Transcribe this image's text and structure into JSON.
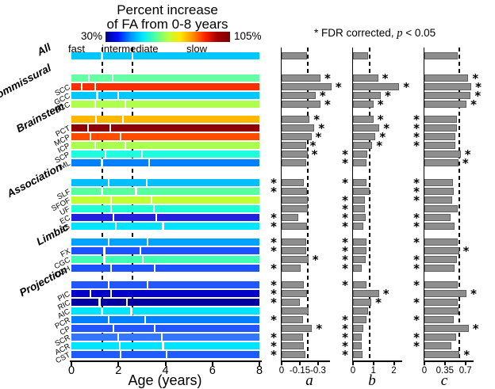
{
  "header": {
    "title_line1": "Percent increase",
    "title_line2": "of FA from 0-8 years",
    "fdr_prefix": "* FDR corrected, ",
    "fdr_p": "p",
    "fdr_suffix": " < 0.05"
  },
  "colorbar": {
    "min_label": "30%",
    "max_label": "105%",
    "speed_fast": "fast",
    "speed_intermediate": "intermediate",
    "speed_slow": "slow",
    "gradient_colors": [
      "#000088",
      "#0010FF",
      "#0090FF",
      "#00E8FF",
      "#50FFA0",
      "#B8FF40",
      "#FFE800",
      "#FF9000",
      "#FF2000",
      "#A00000",
      "#800000"
    ]
  },
  "chart_data": {
    "type": "bar",
    "description": "Horizontal age-timeline bars (jet color = total percent FA increase, white gaps = fast/intermediate/slow phase transition ages) plus three gray horizontal bar panels a, b, c; dashed line in each panel marks the All (whole-brain) value; * = FDR corrected p < 0.05",
    "main": {
      "xlabel": "Age (years)",
      "xlim": [
        0,
        8
      ],
      "xticks": [
        {
          "value": 0,
          "label": "0"
        },
        {
          "value": 2,
          "label": "2"
        },
        {
          "value": 4,
          "label": "4"
        },
        {
          "value": 6,
          "label": "6"
        },
        {
          "value": 8,
          "label": "8"
        }
      ],
      "dashed_ages": [
        1.3,
        2.6
      ],
      "color_scale_min": "30%",
      "color_scale_max": "105%"
    },
    "panels": [
      {
        "letter": "a",
        "dashed_value": -0.217,
        "axis_range": [
          0,
          -0.39
        ],
        "ticks": [
          {
            "value": 0,
            "label": "0"
          },
          {
            "value": 0.15,
            "label": "-0.15"
          },
          {
            "value": 0.3,
            "label": "-0.3"
          }
        ]
      },
      {
        "letter": "b",
        "dashed_value": 0.82,
        "axis_range": [
          0,
          2.4
        ],
        "ticks": [
          {
            "value": 0,
            "label": "0"
          },
          {
            "value": 1,
            "label": "1"
          },
          {
            "value": 2,
            "label": "2"
          }
        ]
      },
      {
        "letter": "c",
        "dashed_value": 0.6,
        "axis_range": [
          0,
          0.84
        ],
        "ticks": [
          {
            "value": 0,
            "label": "0"
          },
          {
            "value": 0.35,
            "label": "0.35"
          },
          {
            "value": 0.7,
            "label": "0.7"
          }
        ]
      }
    ],
    "group_names": [
      "All",
      "Commissural",
      "Brainstem",
      "Association",
      "Limbic",
      "Projection"
    ],
    "rows": [
      {
        "label": "All",
        "group": "All",
        "group_mean": true,
        "color": "#00C8FF",
        "phase_breaks": [
          1.3,
          2.6
        ],
        "a": -0.21,
        "a_star": null,
        "b": 0.75,
        "b_star": null,
        "c": 0.57,
        "c_star": null
      },
      {
        "label": "Commissural",
        "group": "Commissural",
        "group_mean": true,
        "color": "#66FFA3",
        "phase_breaks": [
          0.75,
          1.75
        ],
        "a": -0.32,
        "a_star": "right",
        "b": 1.23,
        "b_star": "right",
        "c": 0.75,
        "c_star": "right"
      },
      {
        "label": "SCC",
        "group": "Commissural",
        "group_mean": false,
        "color": "#FF2E00",
        "phase_breaks": [
          0.45,
          1.0
        ],
        "a": -0.41,
        "a_star": "right",
        "b": 2.26,
        "b_star": "right",
        "c": 0.8,
        "c_star": "right"
      },
      {
        "label": "GCC",
        "group": "Commissural",
        "group_mean": false,
        "color": "#00C8FF",
        "phase_breaks": [
          1.1,
          2.0
        ],
        "a": -0.28,
        "a_star": "right",
        "b": 1.36,
        "b_star": "right",
        "c": 0.79,
        "c_star": "right"
      },
      {
        "label": "BCC",
        "group": "Commissural",
        "group_mean": false,
        "color": "#AFFF4D",
        "phase_breaks": [
          1.0,
          2.3
        ],
        "a": -0.32,
        "a_star": "right",
        "b": 1.0,
        "b_star": "right",
        "c": 0.72,
        "c_star": "right"
      },
      {
        "label": "Brainstem",
        "group": "Brainstem",
        "group_mean": true,
        "color": "#FFB800",
        "phase_breaks": [
          1.05,
          2.2
        ],
        "a": -0.23,
        "a_star": "right",
        "b": 1.0,
        "b_star": "right",
        "c": 0.55,
        "c_star": "left"
      },
      {
        "label": "PCT",
        "group": "Brainstem",
        "group_mean": false,
        "color": "#8F0000",
        "phase_breaks": [
          0.7,
          1.65
        ],
        "a": -0.27,
        "a_star": "right",
        "b": 1.29,
        "b_star": "right",
        "c": 0.55,
        "c_star": "left"
      },
      {
        "label": "MCP",
        "group": "Brainstem",
        "group_mean": false,
        "color": "#FF4D00",
        "phase_breaks": [
          0.8,
          2.1
        ],
        "a": -0.245,
        "a_star": "right",
        "b": 1.1,
        "b_star": "right",
        "c": 0.53,
        "c_star": "left"
      },
      {
        "label": "ICP",
        "group": "Brainstem",
        "group_mean": false,
        "color": "#A8FF4D",
        "phase_breaks": [
          1.0,
          2.3
        ],
        "a": -0.2,
        "a_star": "right",
        "b": 0.94,
        "b_star": "right",
        "c": 0.53,
        "c_star": "left"
      },
      {
        "label": "SCP",
        "group": "Brainstem",
        "group_mean": false,
        "color": "#1FFFE0",
        "phase_breaks": [
          1.45,
          3.0
        ],
        "a": -0.213,
        "a_star": "right",
        "b": 0.71,
        "b_star": "left",
        "c": 0.62,
        "c_star": "right"
      },
      {
        "label": "ML",
        "group": "Brainstem",
        "group_mean": false,
        "color": "#007FFF",
        "phase_breaks": [
          1.3,
          3.3
        ],
        "a": -0.2,
        "a_star": null,
        "b": 0.65,
        "b_star": "left",
        "c": 0.58,
        "c_star": "right"
      },
      {
        "label": "Association",
        "group": "Association",
        "group_mean": true,
        "color": "#00BFFF",
        "phase_breaks": [
          1.6,
          3.2
        ],
        "a": -0.18,
        "a_star": "left",
        "b": 0.67,
        "b_star": "left",
        "c": 0.49,
        "c_star": "left"
      },
      {
        "label": "SLF",
        "group": "Association",
        "group_mean": false,
        "color": "#57FF9E",
        "phase_breaks": [
          1.3,
          2.75
        ],
        "a": -0.207,
        "a_star": "left",
        "b": 0.82,
        "b_star": null,
        "c": 0.5,
        "c_star": "left"
      },
      {
        "label": "SFOF",
        "group": "Association",
        "group_mean": false,
        "color": "#BFFF33",
        "phase_breaks": [
          1.7,
          3.4
        ],
        "a": -0.217,
        "a_star": null,
        "b": 0.58,
        "b_star": "left",
        "c": 0.47,
        "c_star": "left"
      },
      {
        "label": "UF",
        "group": "Association",
        "group_mean": false,
        "color": "#21FFD4",
        "phase_breaks": [
          1.7,
          3.5
        ],
        "a": -0.215,
        "a_star": null,
        "b": 0.58,
        "b_star": "left",
        "c": 0.565,
        "c_star": null
      },
      {
        "label": "EC",
        "group": "Association",
        "group_mean": false,
        "color": "#2222DD",
        "phase_breaks": [
          1.8,
          3.6
        ],
        "a": -0.14,
        "a_star": "left",
        "b": 0.62,
        "b_star": "left",
        "c": 0.45,
        "c_star": "left"
      },
      {
        "label": "SS",
        "group": "Association",
        "group_mean": false,
        "color": "#00E5FF",
        "phase_breaks": [
          1.9,
          3.9
        ],
        "a": -0.207,
        "a_star": "left",
        "b": 0.52,
        "b_star": "left",
        "c": 0.52,
        "c_star": "left"
      },
      {
        "label": "Limbic",
        "group": "Limbic",
        "group_mean": true,
        "color": "#00A2FF",
        "phase_breaks": [
          1.6,
          3.25
        ],
        "a": -0.2,
        "a_star": "left",
        "b": 0.65,
        "b_star": "left",
        "c": 0.565,
        "c_star": "left"
      },
      {
        "label": "FX",
        "group": "Limbic",
        "group_mean": false,
        "color": "#1A53FF",
        "phase_breaks": [
          1.4,
          2.95
        ],
        "a": -0.2,
        "a_star": "left",
        "b": 0.65,
        "b_star": "left",
        "c": 0.59,
        "c_star": "right"
      },
      {
        "label": "CGC",
        "group": "Limbic",
        "group_mean": false,
        "color": "#40FFB2",
        "phase_breaks": [
          1.4,
          3.05
        ],
        "a": -0.22,
        "a_star": "right",
        "b": 0.62,
        "b_star": "left",
        "c": 0.55,
        "c_star": "left"
      },
      {
        "label": "CGH",
        "group": "Limbic",
        "group_mean": false,
        "color": "#1A53FF",
        "phase_breaks": [
          1.7,
          3.55
        ],
        "a": -0.157,
        "a_star": "left",
        "b": 0.43,
        "b_star": "left",
        "c": 0.52,
        "c_star": "left"
      },
      {
        "label": "Projection",
        "group": "Projection",
        "group_mean": true,
        "color": "#2456FF",
        "phase_breaks": [
          1.6,
          3.25
        ],
        "a": -0.185,
        "a_star": "left",
        "b": 0.65,
        "b_star": "left",
        "c": 0.565,
        "c_star": "left"
      },
      {
        "label": "PIC",
        "group": "Projection",
        "group_mean": false,
        "color": "#0000C8",
        "phase_breaks": [
          0.8,
          1.7
        ],
        "a": -0.207,
        "a_star": "left",
        "b": 1.27,
        "b_star": "right",
        "c": 0.72,
        "c_star": "right"
      },
      {
        "label": "RIC",
        "group": "Projection",
        "group_mean": false,
        "color": "#0000A0",
        "phase_breaks": [
          1.2,
          2.35
        ],
        "a": -0.152,
        "a_star": "left",
        "b": 0.9,
        "b_star": "right",
        "c": 0.565,
        "c_star": "left"
      },
      {
        "label": "AIC",
        "group": "Projection",
        "group_mean": false,
        "color": "#00E5FF",
        "phase_breaks": [
          1.3,
          2.55
        ],
        "a": -0.222,
        "a_star": null,
        "b": 0.75,
        "b_star": null,
        "c": 0.58,
        "c_star": null
      },
      {
        "label": "PCR",
        "group": "Projection",
        "group_mean": false,
        "color": "#0080FF",
        "phase_breaks": [
          1.6,
          3.15
        ],
        "a": -0.174,
        "a_star": "left",
        "b": 0.65,
        "b_star": "left",
        "c": 0.5,
        "c_star": "left"
      },
      {
        "label": "CP",
        "group": "Projection",
        "group_mean": false,
        "color": "#2456FF",
        "phase_breaks": [
          1.8,
          3.55
        ],
        "a": -0.25,
        "a_star": "right",
        "b": 0.52,
        "b_star": "left",
        "c": 0.755,
        "c_star": "right"
      },
      {
        "label": "SCR",
        "group": "Projection",
        "group_mean": false,
        "color": "#3377FF",
        "phase_breaks": [
          2.0,
          3.85
        ],
        "a": -0.174,
        "a_star": "left",
        "b": 0.43,
        "b_star": "left",
        "c": 0.54,
        "c_star": "left"
      },
      {
        "label": "ACR",
        "group": "Projection",
        "group_mean": false,
        "color": "#00E5FF",
        "phase_breaks": [
          2.05,
          3.9
        ],
        "a": -0.185,
        "a_star": "left",
        "b": 0.43,
        "b_star": "left",
        "c": 0.465,
        "c_star": "left"
      },
      {
        "label": "CST",
        "group": "Projection",
        "group_mean": false,
        "color": "#1F5CFF",
        "phase_breaks": [
          2.1,
          4.05
        ],
        "a": -0.196,
        "a_star": "left",
        "b": 0.48,
        "b_star": "left",
        "c": 0.6,
        "c_star": "right"
      }
    ]
  }
}
